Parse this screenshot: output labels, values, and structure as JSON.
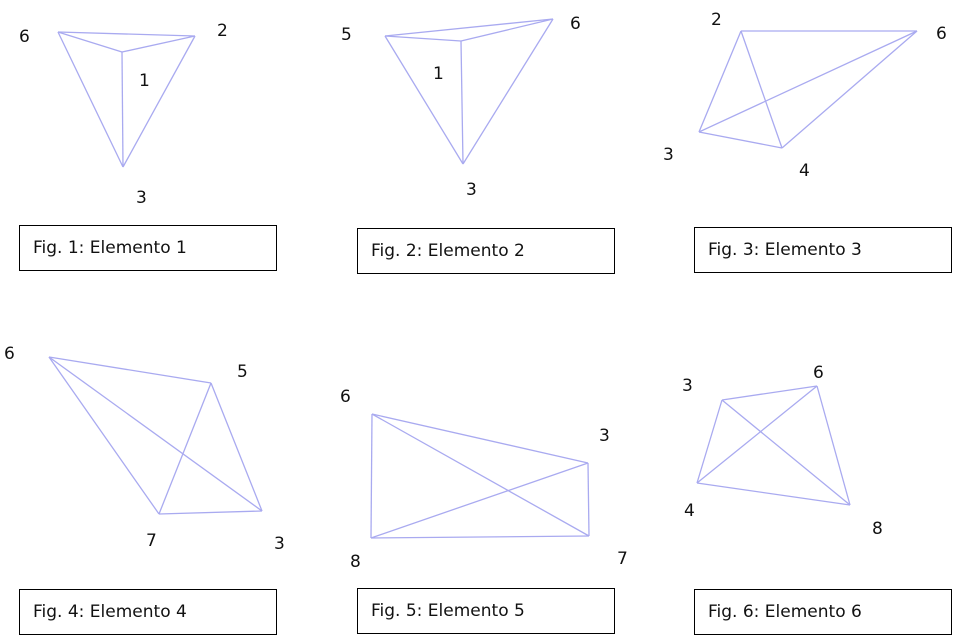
{
  "figures": [
    {
      "caption": "Fig. 1: Elemento 1",
      "labels": [
        "6",
        "2",
        "1",
        "3"
      ],
      "edges": [
        [
          "a",
          "b"
        ],
        [
          "a",
          "c"
        ],
        [
          "b",
          "c"
        ],
        [
          "c",
          "d"
        ],
        [
          "a",
          "d"
        ],
        [
          "b",
          "d"
        ]
      ]
    },
    {
      "caption": "Fig. 2: Elemento 2",
      "labels": [
        "5",
        "6",
        "1",
        "3"
      ],
      "edges": [
        [
          "a",
          "b"
        ],
        [
          "a",
          "c"
        ],
        [
          "b",
          "c"
        ],
        [
          "c",
          "d"
        ],
        [
          "a",
          "d"
        ],
        [
          "b",
          "d"
        ]
      ]
    },
    {
      "caption": "Fig. 3: Elemento 3",
      "labels": [
        "2",
        "6",
        "3",
        "4"
      ],
      "edges": [
        [
          "2",
          "6"
        ],
        [
          "2",
          "3"
        ],
        [
          "2",
          "4"
        ],
        [
          "3",
          "4"
        ],
        [
          "3",
          "6"
        ],
        [
          "4",
          "6"
        ]
      ]
    },
    {
      "caption": "Fig. 4: Elemento 4",
      "labels": [
        "6",
        "5",
        "7",
        "3"
      ],
      "edges": [
        [
          "6",
          "5"
        ],
        [
          "6",
          "7"
        ],
        [
          "6",
          "3"
        ],
        [
          "5",
          "7"
        ],
        [
          "5",
          "3"
        ],
        [
          "7",
          "3"
        ]
      ]
    },
    {
      "caption": "Fig. 5: Elemento 5",
      "labels": [
        "6",
        "3",
        "8",
        "7"
      ],
      "edges": [
        [
          "6",
          "3"
        ],
        [
          "6",
          "8"
        ],
        [
          "6",
          "7"
        ],
        [
          "3",
          "8"
        ],
        [
          "3",
          "7"
        ],
        [
          "8",
          "7"
        ]
      ]
    },
    {
      "caption": "Fig. 6: Elemento 6",
      "labels": [
        "3",
        "6",
        "4",
        "8"
      ],
      "edges": [
        [
          "3",
          "6"
        ],
        [
          "3",
          "4"
        ],
        [
          "3",
          "8"
        ],
        [
          "6",
          "4"
        ],
        [
          "6",
          "8"
        ],
        [
          "4",
          "8"
        ]
      ]
    }
  ]
}
